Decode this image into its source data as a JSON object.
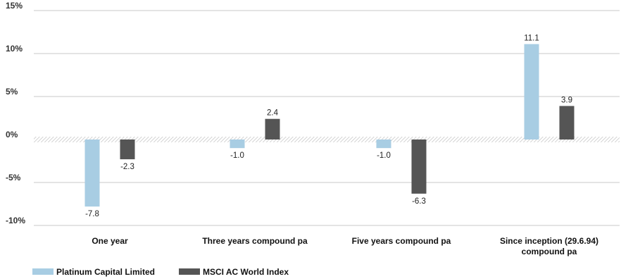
{
  "chart_data": {
    "type": "bar",
    "categories": [
      "One year",
      "Three years compound pa",
      "Five years compound pa",
      "Since inception (29.6.94) compound pa"
    ],
    "category_lines": [
      [
        "One year"
      ],
      [
        "Three years compound pa"
      ],
      [
        "Five years compound pa"
      ],
      [
        "Since inception (29.6.94)",
        "compound pa"
      ]
    ],
    "series": [
      {
        "name": "Platinum Capital Limited",
        "values": [
          -7.8,
          -1.0,
          -1.0,
          11.1
        ],
        "labels": [
          "-7.8",
          "-1.0",
          "-1.0",
          "11.1"
        ]
      },
      {
        "name": "MSCI AC World Index",
        "values": [
          -2.3,
          2.4,
          -6.3,
          3.9
        ],
        "labels": [
          "-2.3",
          "2.4",
          "-6.3",
          "3.9"
        ]
      }
    ],
    "ylim": [
      -10,
      15
    ],
    "yticks": [
      15,
      10,
      5,
      0,
      -5,
      -10
    ],
    "ytick_labels": [
      "15%",
      "10%",
      "5%",
      "0%",
      "-5%",
      "-10%"
    ],
    "grid": true,
    "legend_position": "bottom-left"
  },
  "colors": {
    "series": [
      "#a8cde3",
      "#555555"
    ],
    "grid": "#c9c9c9",
    "zero_hatch": "#9a9a9a"
  }
}
